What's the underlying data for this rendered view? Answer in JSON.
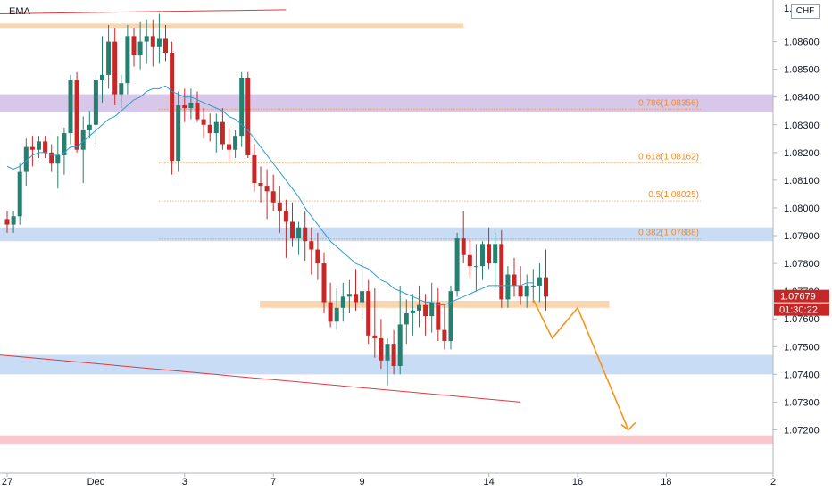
{
  "header": {
    "indicator": "EMA",
    "currency": "CHF"
  },
  "price_tags": {
    "last": "1.07679",
    "countdown": "01:30:22"
  },
  "colors": {
    "up": "#26806f",
    "down": "#c62828",
    "ema": "#2f9ad6",
    "fib": "#f28c28",
    "projection": "#f7941d",
    "trendline": "#e0393e",
    "zone_orange": "#fbd4b0",
    "zone_purple": "#d7c7e8",
    "zone_blue": "#c9dcf5",
    "zone_red": "#f8c8cc",
    "badge": "#c62828"
  },
  "chart_data": {
    "type": "candlestick",
    "y_axis": {
      "range": [
        1.0712,
        1.0872
      ],
      "ticks": [
        "1.08600",
        "1.08500",
        "1.08400",
        "1.08300",
        "1.08200",
        "1.08100",
        "1.08000",
        "1.07900",
        "1.07800",
        "1.07700",
        "1.07600",
        "1.07500",
        "1.07400",
        "1.07300",
        "1.07200"
      ],
      "partial_top": "1.0"
    },
    "x_axis": {
      "ticks": [
        {
          "label": "27",
          "i": 0
        },
        {
          "label": "Dec",
          "i": 14
        },
        {
          "label": "3",
          "i": 28
        },
        {
          "label": "7",
          "i": 42
        },
        {
          "label": "9",
          "i": 56
        },
        {
          "label": "14",
          "i": 76
        },
        {
          "label": "16",
          "i": 90
        },
        {
          "label": "18",
          "i": 104
        },
        {
          "label": "2",
          "i": 125
        }
      ]
    },
    "candles": [
      [
        1.0796,
        1.0799,
        1.0791,
        1.0794
      ],
      [
        1.0794,
        1.0799,
        1.0791,
        1.0797
      ],
      [
        1.0797,
        1.0816,
        1.0794,
        1.0813
      ],
      [
        1.0813,
        1.0825,
        1.0808,
        1.0822
      ],
      [
        1.0822,
        1.0826,
        1.0815,
        1.0821
      ],
      [
        1.0821,
        1.0826,
        1.0818,
        1.0824
      ],
      [
        1.0824,
        1.0826,
        1.0818,
        1.082
      ],
      [
        1.082,
        1.0823,
        1.0813,
        1.0816
      ],
      [
        1.0816,
        1.0826,
        1.0807,
        1.0819
      ],
      [
        1.0819,
        1.0829,
        1.0812,
        1.0827
      ],
      [
        1.0827,
        1.0848,
        1.0823,
        1.0846
      ],
      [
        1.0846,
        1.0849,
        1.082,
        1.0821
      ],
      [
        1.0821,
        1.0833,
        1.0809,
        1.0828
      ],
      [
        1.0828,
        1.0835,
        1.0825,
        1.083
      ],
      [
        1.083,
        1.0848,
        1.0822,
        1.0846
      ],
      [
        1.0846,
        1.0862,
        1.0838,
        1.0848
      ],
      [
        1.0848,
        1.0866,
        1.0843,
        1.086
      ],
      [
        1.086,
        1.0865,
        1.0837,
        1.0841
      ],
      [
        1.0841,
        1.0848,
        1.0836,
        1.0845
      ],
      [
        1.0845,
        1.0866,
        1.0841,
        1.0862
      ],
      [
        1.0862,
        1.0865,
        1.0851,
        1.0855
      ],
      [
        1.0855,
        1.0867,
        1.085,
        1.086
      ],
      [
        1.086,
        1.0868,
        1.0852,
        1.0862
      ],
      [
        1.0862,
        1.0868,
        1.0851,
        1.0858
      ],
      [
        1.0858,
        1.087,
        1.0852,
        1.0861
      ],
      [
        1.0861,
        1.0866,
        1.0853,
        1.0856
      ],
      [
        1.0856,
        1.086,
        1.0812,
        1.0817
      ],
      [
        1.0817,
        1.0842,
        1.0813,
        1.0837
      ],
      [
        1.0837,
        1.0843,
        1.0831,
        1.0836
      ],
      [
        1.0836,
        1.0843,
        1.0832,
        1.0838
      ],
      [
        1.0838,
        1.0842,
        1.0831,
        1.0832
      ],
      [
        1.0832,
        1.0836,
        1.0825,
        1.083
      ],
      [
        1.083,
        1.0834,
        1.0824,
        1.0827
      ],
      [
        1.0827,
        1.0834,
        1.082,
        1.0831
      ],
      [
        1.0831,
        1.0836,
        1.0821,
        1.0823
      ],
      [
        1.0823,
        1.0829,
        1.0817,
        1.0821
      ],
      [
        1.0821,
        1.0828,
        1.0818,
        1.0826
      ],
      [
        1.0826,
        1.0849,
        1.0822,
        1.0847
      ],
      [
        1.0847,
        1.0849,
        1.0818,
        1.0819
      ],
      [
        1.0819,
        1.0823,
        1.0806,
        1.0809
      ],
      [
        1.0809,
        1.0815,
        1.0802,
        1.0808
      ],
      [
        1.0808,
        1.0814,
        1.0796,
        1.0806
      ],
      [
        1.0806,
        1.0812,
        1.0799,
        1.0802
      ],
      [
        1.0802,
        1.0808,
        1.0791,
        1.0799
      ],
      [
        1.0799,
        1.0803,
        1.0782,
        1.0795
      ],
      [
        1.0795,
        1.0802,
        1.0786,
        1.0789
      ],
      [
        1.0789,
        1.0795,
        1.0783,
        1.0793
      ],
      [
        1.0793,
        1.0799,
        1.0781,
        1.0788
      ],
      [
        1.0788,
        1.0793,
        1.0776,
        1.0785
      ],
      [
        1.0785,
        1.0791,
        1.0774,
        1.078
      ],
      [
        1.078,
        1.0784,
        1.0762,
        1.0766
      ],
      [
        1.0766,
        1.0773,
        1.0757,
        1.0759
      ],
      [
        1.0759,
        1.0771,
        1.0756,
        1.0764
      ],
      [
        1.0764,
        1.0773,
        1.0759,
        1.0768
      ],
      [
        1.0768,
        1.0774,
        1.0762,
        1.0769
      ],
      [
        1.0769,
        1.0778,
        1.0763,
        1.0766
      ],
      [
        1.0766,
        1.0781,
        1.076,
        1.077
      ],
      [
        1.077,
        1.0774,
        1.0751,
        1.0754
      ],
      [
        1.0754,
        1.0771,
        1.0746,
        1.0753
      ],
      [
        1.0753,
        1.076,
        1.0742,
        1.0745
      ],
      [
        1.0745,
        1.0753,
        1.0736,
        1.0751
      ],
      [
        1.0751,
        1.0756,
        1.074,
        1.0743
      ],
      [
        1.0743,
        1.0772,
        1.074,
        1.0758
      ],
      [
        1.0758,
        1.0767,
        1.0751,
        1.0762
      ],
      [
        1.0762,
        1.0769,
        1.0754,
        1.0763
      ],
      [
        1.0763,
        1.0772,
        1.0757,
        1.0765
      ],
      [
        1.0765,
        1.0769,
        1.0754,
        1.0761
      ],
      [
        1.0761,
        1.0773,
        1.0755,
        1.0766
      ],
      [
        1.0766,
        1.0771,
        1.0752,
        1.0756
      ],
      [
        1.0756,
        1.0765,
        1.0749,
        1.0752
      ],
      [
        1.0752,
        1.0772,
        1.0749,
        1.077
      ],
      [
        1.077,
        1.0791,
        1.0768,
        1.0789
      ],
      [
        1.0789,
        1.0799,
        1.078,
        1.0783
      ],
      [
        1.0783,
        1.0789,
        1.0775,
        1.0779
      ],
      [
        1.0779,
        1.0787,
        1.077,
        1.0779
      ],
      [
        1.0779,
        1.0788,
        1.0774,
        1.0787
      ],
      [
        1.0787,
        1.0793,
        1.0778,
        1.078
      ],
      [
        1.078,
        1.0791,
        1.0771,
        1.0787
      ],
      [
        1.0787,
        1.0792,
        1.0764,
        1.0767
      ],
      [
        1.0767,
        1.0779,
        1.0764,
        1.0776
      ],
      [
        1.0776,
        1.0782,
        1.0768,
        1.0772
      ],
      [
        1.0772,
        1.0779,
        1.0765,
        1.0768
      ],
      [
        1.0768,
        1.0776,
        1.0764,
        1.0772
      ],
      [
        1.0772,
        1.0778,
        1.0766,
        1.0772
      ],
      [
        1.0772,
        1.078,
        1.0766,
        1.0775
      ],
      [
        1.0775,
        1.0785,
        1.0763,
        1.0768
      ]
    ],
    "ema": [
      [
        0,
        1.0815
      ],
      [
        1,
        1.0814
      ],
      [
        2,
        1.0815
      ],
      [
        3,
        1.0817
      ],
      [
        4,
        1.0819
      ],
      [
        5,
        1.082
      ],
      [
        6,
        1.082
      ],
      [
        7,
        1.0819
      ],
      [
        8,
        1.0819
      ],
      [
        9,
        1.082
      ],
      [
        10,
        1.0822
      ],
      [
        11,
        1.0822
      ],
      [
        12,
        1.0824
      ],
      [
        13,
        1.0826
      ],
      [
        14,
        1.0828
      ],
      [
        15,
        1.083
      ],
      [
        16,
        1.0832
      ],
      [
        17,
        1.0833
      ],
      [
        18,
        1.0835
      ],
      [
        19,
        1.0837
      ],
      [
        20,
        1.0839
      ],
      [
        21,
        1.084
      ],
      [
        22,
        1.0842
      ],
      [
        23,
        1.0843
      ],
      [
        24,
        1.0843
      ],
      [
        25,
        1.0844
      ],
      [
        26,
        1.0842
      ],
      [
        27,
        1.0841
      ],
      [
        28,
        1.084
      ],
      [
        29,
        1.084
      ],
      [
        30,
        1.0839
      ],
      [
        31,
        1.0838
      ],
      [
        32,
        1.0837
      ],
      [
        33,
        1.0836
      ],
      [
        34,
        1.0835
      ],
      [
        35,
        1.0833
      ],
      [
        36,
        1.0832
      ],
      [
        37,
        1.083
      ],
      [
        38,
        1.0828
      ],
      [
        39,
        1.0825
      ],
      [
        40,
        1.0822
      ],
      [
        41,
        1.0819
      ],
      [
        42,
        1.0816
      ],
      [
        43,
        1.0813
      ],
      [
        44,
        1.081
      ],
      [
        45,
        1.0807
      ],
      [
        46,
        1.0804
      ],
      [
        47,
        1.08
      ],
      [
        48,
        1.0797
      ],
      [
        49,
        1.0794
      ],
      [
        50,
        1.0791
      ],
      [
        51,
        1.0788
      ],
      [
        52,
        1.0786
      ],
      [
        53,
        1.0784
      ],
      [
        54,
        1.0782
      ],
      [
        55,
        1.078
      ],
      [
        56,
        1.0779
      ],
      [
        57,
        1.0778
      ],
      [
        58,
        1.0776
      ],
      [
        59,
        1.0774
      ],
      [
        60,
        1.0773
      ],
      [
        61,
        1.0771
      ],
      [
        62,
        1.077
      ],
      [
        63,
        1.0769
      ],
      [
        64,
        1.0768
      ],
      [
        65,
        1.0767
      ],
      [
        66,
        1.0766
      ],
      [
        67,
        1.0766
      ],
      [
        68,
        1.0765
      ],
      [
        69,
        1.0765
      ],
      [
        70,
        1.0766
      ],
      [
        71,
        1.0767
      ],
      [
        72,
        1.0768
      ],
      [
        73,
        1.0769
      ],
      [
        74,
        1.077
      ],
      [
        75,
        1.0771
      ],
      [
        76,
        1.0772
      ],
      [
        77,
        1.0772
      ],
      [
        78,
        1.0772
      ],
      [
        79,
        1.0772
      ],
      [
        80,
        1.0772
      ],
      [
        81,
        1.0772
      ],
      [
        82,
        1.0773
      ],
      [
        83,
        1.0773
      ]
    ],
    "zones": [
      {
        "kind": "orange",
        "i0": 0,
        "i1": 72,
        "top": 1.08665,
        "bottom": 1.0865
      },
      {
        "kind": "purple",
        "i0": 0,
        "i1": 125,
        "top": 1.0841,
        "bottom": 1.08345
      },
      {
        "kind": "blue",
        "i0": 0,
        "i1": 125,
        "top": 1.0793,
        "bottom": 1.0788
      },
      {
        "kind": "orange",
        "i0": 41,
        "i1": 95,
        "top": 1.07665,
        "bottom": 1.0764
      },
      {
        "kind": "blue",
        "i0": 0,
        "i1": 125,
        "top": 1.0747,
        "bottom": 1.074
      },
      {
        "kind": "red",
        "i0": 0,
        "i1": 125,
        "top": 1.0718,
        "bottom": 1.0715
      }
    ],
    "fib_levels": [
      {
        "label": "0.786(1.08356)",
        "price": 1.08356
      },
      {
        "label": "0.618(1.08162)",
        "price": 1.08162
      },
      {
        "label": "0.5(1.08025)",
        "price": 1.08025
      },
      {
        "label": "0.382(1.07888)",
        "price": 1.07888
      }
    ],
    "fib_start_i": 24,
    "trendlines": [
      {
        "from": [
          0,
          1.087
        ],
        "to": [
          44,
          1.08715
        ]
      },
      {
        "from": [
          0,
          1.0747
        ],
        "to": [
          81,
          1.073
        ]
      }
    ],
    "projection": [
      [
        83,
        1.0767
      ],
      [
        86,
        1.0753
      ],
      [
        90,
        1.0764
      ],
      [
        98,
        1.072
      ]
    ],
    "last_price": 1.07679
  }
}
